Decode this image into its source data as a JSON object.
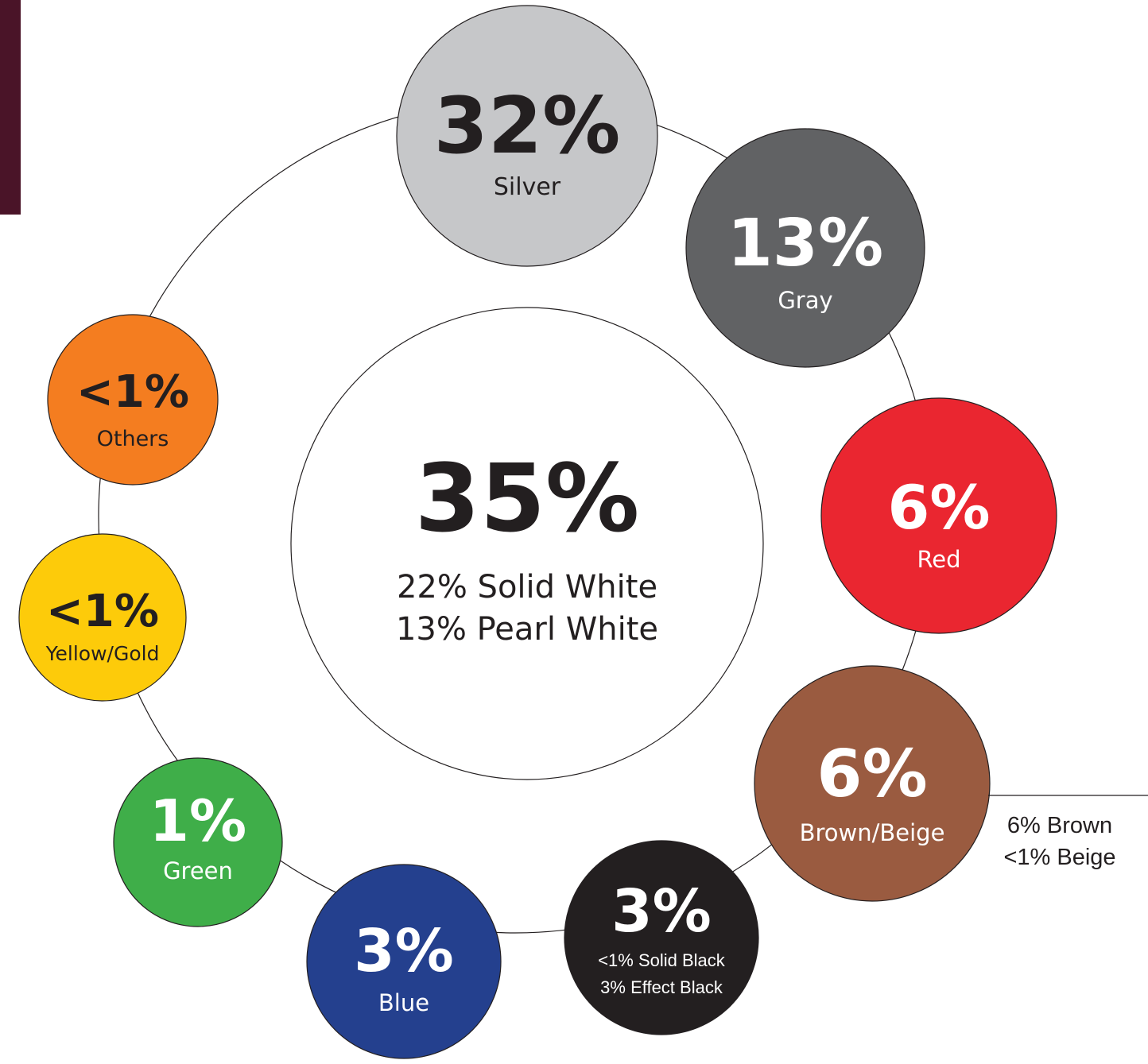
{
  "accent_color": "#4a1428",
  "chart_data": {
    "type": "bubble",
    "title": "",
    "center": {
      "value": 35,
      "label": "35%",
      "lines": [
        "22% Solid White",
        "13% Pearl White"
      ],
      "color": "#ffffff"
    },
    "items": [
      {
        "label": "Silver",
        "value": 32,
        "text": "32%",
        "color": "#c6c7c9",
        "text_color": "#231f20",
        "sub": []
      },
      {
        "label": "Gray",
        "value": 13,
        "text": "13%",
        "color": "#616264",
        "text_color": "#ffffff",
        "sub": []
      },
      {
        "label": "Red",
        "value": 6,
        "text": "6%",
        "color": "#ea2630",
        "text_color": "#ffffff",
        "sub": []
      },
      {
        "label": "Brown/Beige",
        "value": 6,
        "text": "6%",
        "color": "#9a5b40",
        "text_color": "#ffffff",
        "sub": [
          "6% Brown",
          "<1% Beige"
        ]
      },
      {
        "label": "",
        "value": 3,
        "text": "3%",
        "color": "#231f20",
        "text_color": "#ffffff",
        "sub": [
          "<1% Solid Black",
          "3% Effect Black"
        ]
      },
      {
        "label": "Blue",
        "value": 3,
        "text": "3%",
        "color": "#24408e",
        "text_color": "#ffffff",
        "sub": []
      },
      {
        "label": "Green",
        "value": 1,
        "text": "1%",
        "color": "#3fae49",
        "text_color": "#ffffff",
        "sub": []
      },
      {
        "label": "Yellow/Gold",
        "value": 0.5,
        "text": "<1%",
        "color": "#fdcb0a",
        "text_color": "#231f20",
        "sub": []
      },
      {
        "label": "Others",
        "value": 0.5,
        "text": "<1%",
        "color": "#f47d20",
        "text_color": "#231f20",
        "sub": []
      }
    ]
  }
}
